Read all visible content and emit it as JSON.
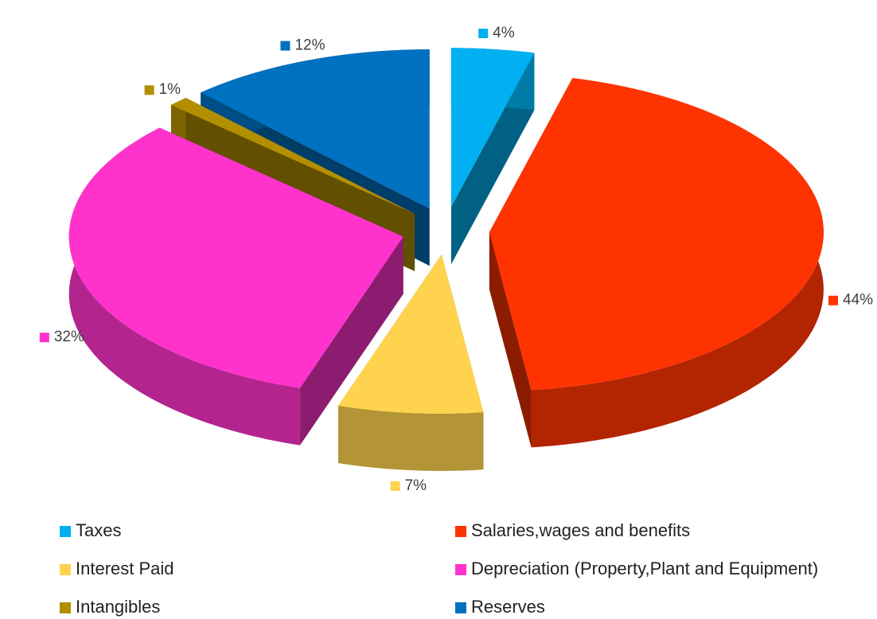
{
  "chart_data": {
    "type": "pie",
    "categories": [
      "Taxes",
      "Salaries,wages and benefits",
      "Interest Paid",
      "Depreciation (Property,Plant and Equipment)",
      "Intangibles",
      "Reserves"
    ],
    "values": [
      4,
      44,
      7,
      32,
      1,
      12
    ],
    "value_labels": [
      "4%",
      "44%",
      "7%",
      "32%",
      "1%",
      "12%"
    ],
    "colors": [
      "#00b0f0",
      "#ff3300",
      "#ffd34d",
      "#ff33cc",
      "#b38f00",
      "#0070c0"
    ],
    "legend": "bottom"
  }
}
